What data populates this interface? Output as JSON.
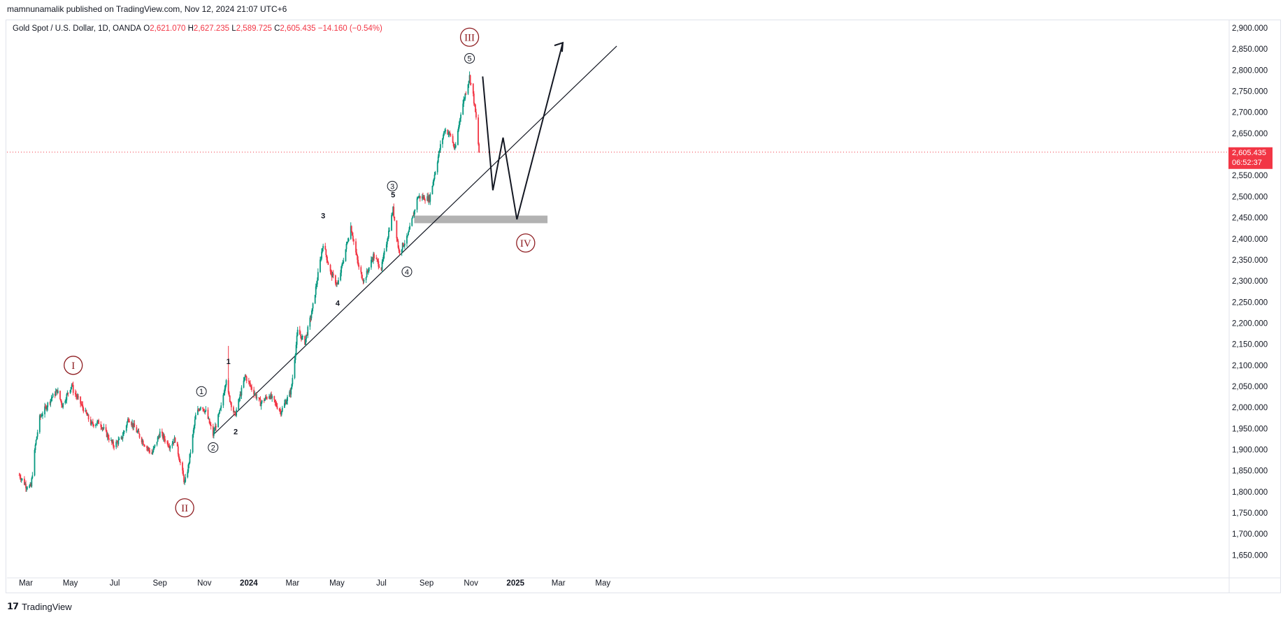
{
  "header": {
    "published": "mamnunamalik published on TradingView.com, Nov 12, 2024 21:07 UTC+6"
  },
  "legend": {
    "symbol": "Gold Spot / U.S. Dollar, 1D, OANDA",
    "o_label": "O",
    "o_value": "2,621.070",
    "h_label": "H",
    "h_value": "2,627.235",
    "l_label": "L",
    "l_value": "2,589.725",
    "c_label": "C",
    "c_value": "2,605.435",
    "change": "−14.160 (−0.54%)"
  },
  "price_badge": {
    "price": "2,605.435",
    "countdown": "06:52:37"
  },
  "footer": {
    "brand": "TradingView"
  },
  "colors": {
    "up": "#089981",
    "down": "#f23645",
    "roman": "#8f1e22",
    "support_band": "#b2b2b2",
    "price_line": "#f23645"
  },
  "chart_data": {
    "type": "candlestick",
    "symbol": "Gold Spot / U.S. Dollar",
    "interval": "1D",
    "y_axis": {
      "ticks": [
        "2,900.000",
        "2,850.000",
        "2,800.000",
        "2,750.000",
        "2,700.000",
        "2,650.000",
        "2,600.000",
        "2,550.000",
        "2,500.000",
        "2,450.000",
        "2,400.000",
        "2,350.000",
        "2,300.000",
        "2,250.000",
        "2,200.000",
        "2,150.000",
        "2,100.000",
        "2,050.000",
        "2,000.000",
        "1,950.000",
        "1,900.000",
        "1,850.000",
        "1,800.000",
        "1,750.000",
        "1,700.000",
        "1,650.000"
      ],
      "range": [
        1630,
        2920
      ]
    },
    "x_axis": {
      "ticks": [
        {
          "label": "Mar",
          "bold": false
        },
        {
          "label": "May",
          "bold": false
        },
        {
          "label": "Jul",
          "bold": false
        },
        {
          "label": "Sep",
          "bold": false
        },
        {
          "label": "Nov",
          "bold": false
        },
        {
          "label": "2024",
          "bold": true
        },
        {
          "label": "Mar",
          "bold": false
        },
        {
          "label": "May",
          "bold": false
        },
        {
          "label": "Jul",
          "bold": false
        },
        {
          "label": "Sep",
          "bold": false
        },
        {
          "label": "Nov",
          "bold": false
        },
        {
          "label": "2025",
          "bold": true
        },
        {
          "label": "Mar",
          "bold": false
        },
        {
          "label": "May",
          "bold": false
        }
      ]
    },
    "price_path": [
      [
        "2023-02-20",
        1840
      ],
      [
        "2023-03-01",
        1815
      ],
      [
        "2023-03-08",
        1812
      ],
      [
        "2023-03-14",
        1910
      ],
      [
        "2023-03-20",
        1975
      ],
      [
        "2023-04-04",
        2020
      ],
      [
        "2023-04-13",
        2040
      ],
      [
        "2023-04-20",
        2005
      ],
      [
        "2023-05-03",
        2055
      ],
      [
        "2023-05-05",
        2040
      ],
      [
        "2023-05-15",
        2010
      ],
      [
        "2023-05-30",
        1960
      ],
      [
        "2023-06-10",
        1965
      ],
      [
        "2023-06-29",
        1910
      ],
      [
        "2023-07-10",
        1925
      ],
      [
        "2023-07-20",
        1975
      ],
      [
        "2023-08-10",
        1915
      ],
      [
        "2023-08-21",
        1890
      ],
      [
        "2023-09-01",
        1940
      ],
      [
        "2023-09-14",
        1910
      ],
      [
        "2023-09-22",
        1925
      ],
      [
        "2023-10-05",
        1820
      ],
      [
        "2023-10-10",
        1860
      ],
      [
        "2023-10-20",
        1980
      ],
      [
        "2023-10-27",
        2005
      ],
      [
        "2023-11-03",
        1990
      ],
      [
        "2023-11-13",
        1935
      ],
      [
        "2023-11-24",
        2000
      ],
      [
        "2023-12-01",
        2070
      ],
      [
        "2023-12-04",
        2030
      ],
      [
        "2023-12-13",
        1980
      ],
      [
        "2023-12-27",
        2075
      ],
      [
        "2024-01-05",
        2045
      ],
      [
        "2024-01-17",
        2010
      ],
      [
        "2024-01-29",
        2030
      ],
      [
        "2024-02-14",
        1990
      ],
      [
        "2024-02-28",
        2040
      ],
      [
        "2024-03-08",
        2180
      ],
      [
        "2024-03-18",
        2155
      ],
      [
        "2024-03-28",
        2230
      ],
      [
        "2024-04-12",
        2390
      ],
      [
        "2024-04-22",
        2320
      ],
      [
        "2024-05-02",
        2290
      ],
      [
        "2024-05-20",
        2430
      ],
      [
        "2024-05-31",
        2330
      ],
      [
        "2024-06-07",
        2300
      ],
      [
        "2024-06-20",
        2360
      ],
      [
        "2024-07-01",
        2330
      ],
      [
        "2024-07-17",
        2470
      ],
      [
        "2024-07-25",
        2370
      ],
      [
        "2024-08-05",
        2400
      ],
      [
        "2024-08-10",
        2430
      ],
      [
        "2024-08-20",
        2500
      ],
      [
        "2024-09-05",
        2495
      ],
      [
        "2024-09-20",
        2620
      ],
      [
        "2024-09-26",
        2660
      ],
      [
        "2024-10-04",
        2645
      ],
      [
        "2024-10-10",
        2610
      ],
      [
        "2024-10-18",
        2700
      ],
      [
        "2024-10-30",
        2785
      ],
      [
        "2024-11-04",
        2740
      ],
      [
        "2024-11-08",
        2685
      ],
      [
        "2024-11-12",
        2605
      ]
    ],
    "annotations": {
      "roman_labels": [
        {
          "text": "I",
          "date": "2023-05-05",
          "price": 2100,
          "role": "wave I"
        },
        {
          "text": "II",
          "date": "2023-10-05",
          "price": 1762,
          "role": "wave II"
        },
        {
          "text": "III",
          "date": "2024-10-30",
          "price": 2878,
          "role": "wave III"
        },
        {
          "text": "IV",
          "date": "2025-01-15",
          "price": 2390,
          "role": "projected wave IV"
        }
      ],
      "circled_labels": [
        {
          "text": "1",
          "date": "2023-10-28",
          "price": 2038
        },
        {
          "text": "2",
          "date": "2023-11-13",
          "price": 1905
        },
        {
          "text": "3",
          "date": "2024-07-16",
          "price": 2525
        },
        {
          "text": "4",
          "date": "2024-08-05",
          "price": 2322
        },
        {
          "text": "5",
          "date": "2024-10-30",
          "price": 2828
        }
      ],
      "wave_labels": [
        {
          "text": "1",
          "date": "2023-12-04",
          "price": 2110
        },
        {
          "text": "2",
          "date": "2023-12-14",
          "price": 1943
        },
        {
          "text": "3",
          "date": "2024-04-12",
          "price": 2455
        },
        {
          "text": "4",
          "date": "2024-05-02",
          "price": 2248
        },
        {
          "text": "5",
          "date": "2024-07-17",
          "price": 2505
        }
      ],
      "trendline": [
        [
          "2023-11-13",
          1935
        ],
        [
          "2025-05-20",
          2857
        ]
      ],
      "support_band": {
        "from": "2024-08-15",
        "to": "2025-02-14",
        "low": 2437,
        "high": 2455
      },
      "projection_path": [
        [
          "2024-11-17",
          2785
        ],
        [
          "2024-12-01",
          2515
        ],
        [
          "2024-12-15",
          2640
        ],
        [
          "2025-01-03",
          2446
        ],
        [
          "2025-03-07",
          2865
        ]
      ]
    }
  }
}
